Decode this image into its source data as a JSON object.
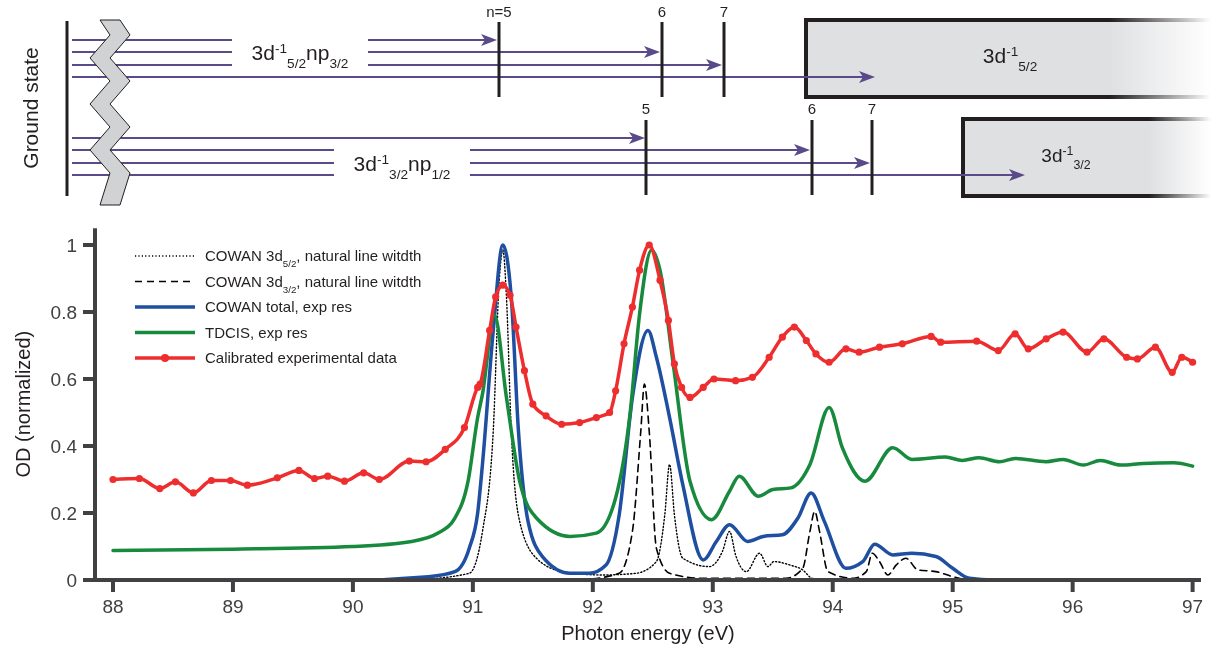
{
  "chart_data": [
    {
      "type": "other",
      "annotations": [
        "Ground state",
        "n=5",
        "6",
        "7",
        "3d$^{-1}$$_{5/2}$np$_{3/2}$",
        "3d$^{-1}$$_{5/2}$",
        "5",
        "6",
        "7",
        "3d$^{-1}$$_{3/2}$np$_{1/2}$",
        "3d$^{-1}$$_{3/2}$"
      ]
    },
    {
      "type": "line",
      "xlabel": "Photon energy (eV)",
      "ylabel": "OD (normalized)",
      "xlim": [
        87.85,
        97.07
      ],
      "ylim": [
        0,
        1.05
      ],
      "xticks": [
        88,
        89,
        90,
        91,
        92,
        93,
        94,
        95,
        96,
        97
      ],
      "yticks": [
        0,
        0.2,
        0.4,
        0.6,
        0.8,
        1
      ],
      "legend": "top left",
      "series": [
        {
          "name": "COWAN 3d$_{5/2}$, natural line witdth",
          "color": "#000000",
          "line_style": "dotted",
          "x": [
            90.5,
            90.97,
            91.08,
            91.17,
            91.22,
            91.25,
            91.28,
            91.32,
            91.39,
            91.53,
            91.75,
            92.08,
            92.36,
            92.53,
            92.6,
            92.64,
            92.68,
            92.75,
            92.97,
            93.08,
            93.14,
            93.19,
            93.28,
            93.39,
            93.46,
            93.51,
            93.64,
            93.75,
            93.83,
            94.03
          ],
          "values": [
            0,
            0.02,
            0.145,
            0.445,
            0.895,
            0.985,
            0.845,
            0.445,
            0.175,
            0.065,
            0.025,
            0.015,
            0.02,
            0.055,
            0.195,
            0.345,
            0.195,
            0.065,
            0.04,
            0.085,
            0.145,
            0.075,
            0.025,
            0.08,
            0.04,
            0.055,
            0.045,
            0.03,
            0.005,
            0
          ]
        },
        {
          "name": "COWAN 3d$_{3/2}$, natural line witdth",
          "color": "#000000",
          "line_style": "dashed",
          "x": [
            91.9,
            92.22,
            92.33,
            92.4,
            92.43,
            92.47,
            92.53,
            92.64,
            92.92,
            93.61,
            93.75,
            93.81,
            93.85,
            93.89,
            93.96,
            94.17,
            94.28,
            94.33,
            94.39,
            94.46,
            94.53,
            94.61,
            94.71,
            94.86,
            95.0,
            95.11
          ],
          "values": [
            0,
            0.02,
            0.145,
            0.445,
            0.585,
            0.445,
            0.095,
            0.02,
            0.005,
            0.005,
            0.035,
            0.145,
            0.205,
            0.145,
            0.025,
            0.005,
            0.025,
            0.08,
            0.055,
            0.015,
            0.045,
            0.065,
            0.03,
            0.025,
            0.01,
            0
          ]
        },
        {
          "name": "COWAN total, exp res",
          "color": "#1f4fa0",
          "line_style": "solid",
          "x": [
            88,
            89,
            90,
            90.63,
            90.85,
            90.97,
            91.04,
            91.08,
            91.17,
            91.25,
            91.32,
            91.38,
            91.46,
            91.58,
            91.81,
            91.97,
            92.11,
            92.22,
            92.33,
            92.46,
            92.53,
            92.64,
            92.75,
            92.92,
            93.03,
            93.14,
            93.29,
            93.42,
            93.58,
            93.71,
            93.82,
            93.93,
            94.11,
            94.25,
            94.35,
            94.5,
            94.66,
            94.86,
            95.0,
            95.14,
            95.34,
            96,
            97
          ],
          "values": [
            0,
            0,
            0,
            0.01,
            0.025,
            0.095,
            0.2,
            0.345,
            0.745,
            1,
            0.845,
            0.445,
            0.175,
            0.07,
            0.02,
            0.02,
            0.045,
            0.195,
            0.545,
            0.745,
            0.665,
            0.485,
            0.285,
            0.06,
            0.115,
            0.165,
            0.115,
            0.13,
            0.135,
            0.185,
            0.26,
            0.175,
            0.035,
            0.055,
            0.107,
            0.075,
            0.08,
            0.07,
            0.035,
            0.005,
            0,
            0,
            0
          ]
        },
        {
          "name": "TDCIS, exp res",
          "color": "#178a3e",
          "line_style": "solid",
          "x": [
            88,
            89,
            90,
            90.49,
            90.71,
            90.85,
            90.96,
            91.04,
            91.08,
            91.18,
            91.28,
            91.39,
            91.53,
            91.81,
            92.03,
            92.19,
            92.31,
            92.39,
            92.49,
            92.56,
            92.67,
            92.81,
            92.99,
            93.14,
            93.22,
            93.38,
            93.5,
            93.65,
            93.81,
            93.97,
            94.08,
            94.27,
            94.5,
            94.66,
            94.94,
            95.08,
            95.22,
            95.39,
            95.52,
            95.78,
            95.92,
            96.09,
            96.23,
            96.4,
            96.59,
            96.84,
            97.0
          ],
          "values": [
            0.088,
            0.092,
            0.1,
            0.115,
            0.14,
            0.185,
            0.295,
            0.485,
            0.555,
            0.79,
            0.545,
            0.295,
            0.185,
            0.13,
            0.14,
            0.245,
            0.495,
            0.795,
            0.985,
            0.925,
            0.645,
            0.295,
            0.18,
            0.265,
            0.31,
            0.25,
            0.27,
            0.275,
            0.345,
            0.515,
            0.395,
            0.295,
            0.395,
            0.36,
            0.367,
            0.357,
            0.365,
            0.353,
            0.363,
            0.353,
            0.36,
            0.343,
            0.357,
            0.343,
            0.348,
            0.35,
            0.34
          ]
        },
        {
          "name": "Calibrated experimental data",
          "color": "#ee2e2e",
          "line_style": "solid",
          "marker": "circle",
          "x": [
            88.0,
            88.22,
            88.39,
            88.52,
            88.67,
            88.82,
            88.98,
            89.12,
            89.37,
            89.55,
            89.68,
            89.79,
            89.93,
            90.09,
            90.22,
            90.47,
            90.61,
            90.77,
            90.93,
            91.04,
            91.06,
            91.14,
            91.19,
            91.25,
            91.31,
            91.36,
            91.43,
            91.5,
            91.61,
            91.74,
            91.89,
            92.03,
            92.14,
            92.19,
            92.26,
            92.33,
            92.39,
            92.47,
            92.56,
            92.63,
            92.68,
            92.74,
            92.81,
            92.92,
            93.01,
            93.19,
            93.33,
            93.47,
            93.58,
            93.68,
            93.78,
            93.86,
            93.97,
            94.11,
            94.22,
            94.39,
            94.58,
            94.82,
            94.9,
            95.2,
            95.38,
            95.52,
            95.63,
            95.78,
            95.92,
            96.12,
            96.26,
            96.45,
            96.54,
            96.69,
            96.83,
            96.91,
            97.0
          ],
          "values": [
            0.3,
            0.303,
            0.273,
            0.293,
            0.26,
            0.297,
            0.297,
            0.283,
            0.305,
            0.327,
            0.303,
            0.31,
            0.295,
            0.32,
            0.3,
            0.355,
            0.353,
            0.39,
            0.455,
            0.575,
            0.585,
            0.745,
            0.845,
            0.88,
            0.85,
            0.755,
            0.625,
            0.525,
            0.49,
            0.465,
            0.47,
            0.485,
            0.5,
            0.565,
            0.705,
            0.815,
            0.925,
            1.0,
            0.895,
            0.775,
            0.645,
            0.575,
            0.545,
            0.575,
            0.6,
            0.595,
            0.605,
            0.665,
            0.725,
            0.755,
            0.715,
            0.675,
            0.65,
            0.69,
            0.68,
            0.695,
            0.705,
            0.727,
            0.71,
            0.713,
            0.685,
            0.735,
            0.69,
            0.72,
            0.74,
            0.68,
            0.72,
            0.665,
            0.66,
            0.695,
            0.62,
            0.665,
            0.65
          ]
        }
      ]
    }
  ]
}
